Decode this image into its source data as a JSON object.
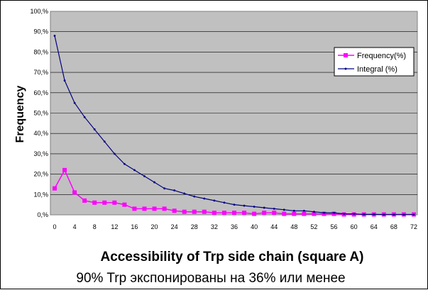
{
  "chart_data": {
    "type": "line",
    "ylabel": "Frequency",
    "xlabel": "Accessibility of Trp side chain (square A)",
    "subtitle": "90% Trp  экспонированы на 36%  или менее",
    "x": [
      0,
      2,
      4,
      6,
      8,
      10,
      12,
      14,
      16,
      18,
      20,
      22,
      24,
      26,
      28,
      30,
      32,
      34,
      36,
      38,
      40,
      42,
      44,
      46,
      48,
      50,
      52,
      54,
      56,
      58,
      60,
      62,
      64,
      66,
      68,
      70,
      72
    ],
    "x_ticks": [
      "0",
      "4",
      "8",
      "12",
      "16",
      "20",
      "24",
      "28",
      "32",
      "36",
      "40",
      "44",
      "48",
      "52",
      "56",
      "60",
      "64",
      "68",
      "72"
    ],
    "ylim": [
      0,
      100
    ],
    "y_ticks": [
      "0,%",
      "10,%",
      "20,%",
      "30,%",
      "40,%",
      "50,%",
      "60,%",
      "70,%",
      "80,%",
      "90,%",
      "100,%"
    ],
    "grid": true,
    "legend_position": "right",
    "series": [
      {
        "name": "Frequency(%)",
        "color": "#ff00ff",
        "marker": "square",
        "values": [
          13,
          22,
          11,
          7,
          6,
          6,
          6,
          5,
          3,
          3,
          3,
          3,
          2,
          1.5,
          1.5,
          1.5,
          1,
          1,
          1,
          1,
          0.5,
          1,
          1,
          0.5,
          0.5,
          0.5,
          0.5,
          0.5,
          0.5,
          0.2,
          0.2,
          0.2,
          0.2,
          0.2,
          0.2,
          0.2,
          0.2
        ]
      },
      {
        "name": "Integral (%)",
        "color": "#000080",
        "marker": "dot",
        "values": [
          88,
          66,
          55,
          48,
          42,
          36,
          30,
          25,
          22,
          19,
          16,
          13,
          12,
          10.5,
          9,
          8,
          7,
          6,
          5,
          4.5,
          4,
          3.5,
          3,
          2.5,
          2,
          2,
          1.5,
          1,
          1,
          0.5,
          0.5,
          0.2,
          0.2,
          0.1,
          0.1,
          0.1,
          0.1
        ]
      }
    ]
  }
}
